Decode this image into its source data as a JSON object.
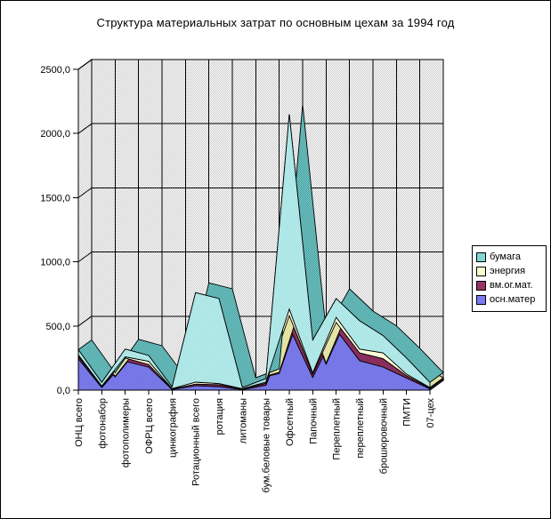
{
  "window": {
    "background": "#ffffff",
    "border_color": "#000000"
  },
  "chart_data": {
    "type": "area",
    "variant": "3d-stacked",
    "title": "Структура материальных затрат по основным цехам за 1994 год",
    "xlabel": "",
    "ylabel": "",
    "ylim": [
      0,
      2500
    ],
    "grid": true,
    "y_ticks": [
      {
        "value": 0,
        "label": "0,0"
      },
      {
        "value": 500,
        "label": "500,0"
      },
      {
        "value": 1000,
        "label": "1000,0"
      },
      {
        "value": 1500,
        "label": "1500,0"
      },
      {
        "value": 2000,
        "label": "2000,0"
      },
      {
        "value": 2500,
        "label": "2500,0"
      }
    ],
    "categories": [
      "ОНЦ  всего",
      "фотонабор",
      "фотополимеры",
      "ОФРЦ  всего",
      "цинкография",
      "Ротационный всего",
      "ротация",
      "литоманы",
      "бум.беловые товары",
      "Офсетный",
      "Папочный",
      "Переплетный",
      "переплетный",
      "брошюровочный",
      "ПМТИ",
      "07-цех"
    ],
    "series": [
      {
        "key": "osn-mater",
        "name": "осн.матер",
        "face_colors": [
          "#8B8BF2",
          "#6363DC"
        ],
        "side_colors": [
          "#5A5AC2",
          "#7575E0"
        ],
        "values": [
          245,
          20,
          225,
          180,
          5,
          35,
          28,
          4,
          38,
          490,
          100,
          470,
          230,
          180,
          95,
          10
        ]
      },
      {
        "key": "vm-og-mat",
        "name": "вм.ог.мат.",
        "face_colors": [
          "#993366",
          "#7A2952"
        ],
        "side_colors": [
          "#6B2347",
          "#8A3E63"
        ],
        "values": [
          18,
          6,
          25,
          20,
          3,
          12,
          15,
          4,
          16,
          90,
          25,
          58,
          60,
          65,
          18,
          5
        ]
      },
      {
        "key": "energiya",
        "name": "энергия",
        "face_colors": [
          "#FFFFCC",
          "#FFFFE6"
        ],
        "side_colors": [
          "#D9D995",
          "#EDEDB5"
        ],
        "values": [
          12,
          6,
          10,
          25,
          4,
          15,
          8,
          3,
          9,
          52,
          10,
          40,
          30,
          45,
          12,
          5
        ]
      },
      {
        "key": "bumaga",
        "name": "бумага",
        "face_colors": [
          "#D4F4F4",
          "#8ADADA"
        ],
        "side_colors": [
          "#44A0A0",
          "#7CC6C6"
        ],
        "values": [
          40,
          28,
          60,
          45,
          13,
          698,
          662,
          9,
          27,
          1518,
          255,
          145,
          220,
          135,
          125,
          40
        ]
      }
    ],
    "legend": {
      "position": "right",
      "items": [
        {
          "label": "бумага",
          "color": "#7FD6D6"
        },
        {
          "label": "энергия",
          "color": "#FFFFCC"
        },
        {
          "label": "вм.ог.мат.",
          "color": "#993366"
        },
        {
          "label": "осн.матер",
          "color": "#7979F0"
        }
      ]
    },
    "wall_colors": [
      "#FFFFFF",
      "#C9C9C9"
    ]
  }
}
